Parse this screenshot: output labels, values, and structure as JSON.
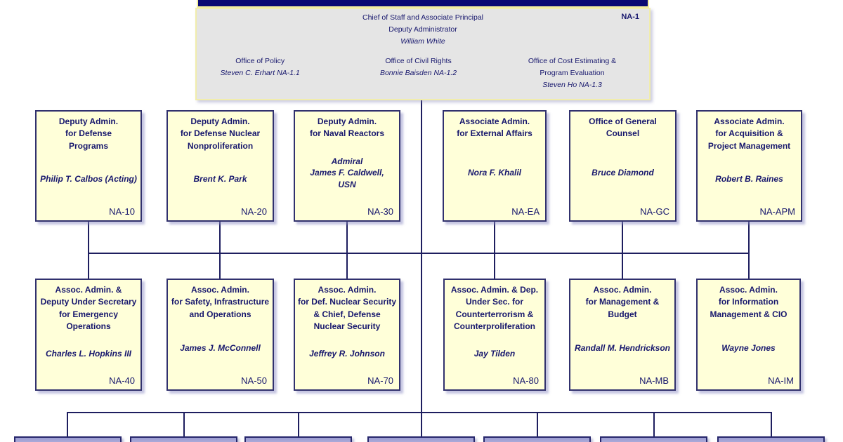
{
  "colors": {
    "navy_bar": "#0a0a72",
    "hq_fill": "#e5e5e5",
    "yellow_box_fill": "#ffffd9",
    "box_border": "#31316e",
    "connector_line": "#1e1e5f",
    "text_navy": "#17176d",
    "pale_yellow_border": "#f1edac",
    "bottom_box_light": "#c9c9ea",
    "bottom_box_dark": "#9b9bd0"
  },
  "headquarters": {
    "code": "NA-1",
    "title_lines": [
      "Chief of Staff and Associate Principal",
      "Deputy Administrator"
    ],
    "name": "William White",
    "offices": [
      {
        "title_lines": [
          "Office of Policy"
        ],
        "name": "Steven C. Erhart NA-1.1"
      },
      {
        "title_lines": [
          "Office of Civil Rights"
        ],
        "name": "Bonnie Baisden NA-1.2"
      },
      {
        "title_lines": [
          "Office of Cost Estimating &",
          "Program Evaluation"
        ],
        "name": "Steven Ho NA-1.3"
      }
    ]
  },
  "row1": [
    {
      "title_lines": [
        "Deputy Admin.",
        "for Defense",
        "Programs"
      ],
      "name_lines": [
        "Philip T. Calbos (Acting)"
      ],
      "code": "NA-10"
    },
    {
      "title_lines": [
        "Deputy Admin.",
        "for Defense Nuclear",
        "Nonproliferation"
      ],
      "name_lines": [
        "Brent K. Park"
      ],
      "code": "NA-20"
    },
    {
      "title_lines": [
        "Deputy Admin.",
        "for Naval Reactors"
      ],
      "name_lines": [
        "Admiral",
        "James F. Caldwell,",
        "USN"
      ],
      "code": "NA-30"
    },
    {
      "title_lines": [
        "Associate Admin.",
        "for External Affairs"
      ],
      "name_lines": [
        "Nora F. Khalil"
      ],
      "code": "NA-EA"
    },
    {
      "title_lines": [
        "Office of General",
        "Counsel"
      ],
      "name_lines": [
        "Bruce Diamond"
      ],
      "code": "NA-GC"
    },
    {
      "title_lines": [
        "Associate Admin.",
        "for Acquisition &",
        "Project Management"
      ],
      "name_lines": [
        "Robert B. Raines"
      ],
      "code": "NA-APM"
    }
  ],
  "row2": [
    {
      "title_lines": [
        "Assoc. Admin. &",
        "Deputy Under Secretary",
        "for Emergency",
        "Operations"
      ],
      "name_lines": [
        "Charles L. Hopkins III"
      ],
      "code": "NA-40"
    },
    {
      "title_lines": [
        "Assoc. Admin.",
        "for Safety, Infrastructure",
        "and Operations"
      ],
      "name_lines": [
        "James J. McConnell"
      ],
      "code": "NA-50"
    },
    {
      "title_lines": [
        "Assoc. Admin.",
        "for Def. Nuclear Security",
        "& Chief, Defense",
        "Nuclear Security"
      ],
      "name_lines": [
        "Jeffrey R. Johnson"
      ],
      "code": "NA-70"
    },
    {
      "title_lines": [
        "Assoc. Admin. & Dep.",
        "Under Sec. for",
        "Counterterrorism &",
        "Counterproliferation"
      ],
      "name_lines": [
        "Jay Tilden"
      ],
      "code": "NA-80"
    },
    {
      "title_lines": [
        "Assoc. Admin.",
        "for Management  &",
        "Budget"
      ],
      "name_lines": [
        "Randall M. Hendrickson"
      ],
      "code": "NA-MB"
    },
    {
      "title_lines": [
        "Assoc. Admin.",
        "for Information",
        "Management & CIO"
      ],
      "name_lines": [
        "Wayne Jones"
      ],
      "code": "NA-IM"
    }
  ],
  "bottom_row": {
    "box_count": 7
  }
}
